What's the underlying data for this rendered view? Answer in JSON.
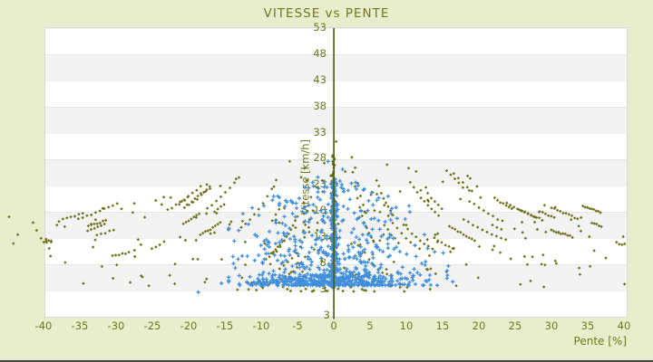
{
  "colors": {
    "background": "#e8edcb",
    "text": "#6f781e",
    "plot_border": "#d9d9d9",
    "axis_line": "#4d560d",
    "bottom_edge": "#454545"
  },
  "chart_data": {
    "type": "scatter",
    "title": "VITESSE vs PENTE",
    "xlabel": "Pente [%]",
    "ylabel": "Vitesse [km/h]",
    "xlim": [
      -39.8,
      40.4
    ],
    "ylim": [
      -2.2,
      53
    ],
    "x_ticks": [
      -40,
      -35,
      -30,
      -25,
      -20,
      -15,
      -10,
      -5,
      0,
      5,
      10,
      15,
      20,
      25,
      30,
      35,
      40
    ],
    "y_ticks": [
      53,
      48,
      43,
      38,
      33,
      28,
      23,
      18,
      13,
      8,
      3
    ],
    "y_axis_bottom_label": "3",
    "grid": "horizontal-bands",
    "band_colors": [
      "#ffffff",
      "#f3f3f3"
    ],
    "band_height_units": 5,
    "legend": "none",
    "axis_line_at_x": 0,
    "series": [
      {
        "name": "pente-vitesse-olive",
        "marker": "diamond",
        "marker_size": 1.7,
        "color": "#6d7117",
        "gen": {
          "rays": {
            "count": 52,
            "c_min": 35,
            "c_max": 680,
            "c_pow": 1.35,
            "v0_min": 8,
            "v0_max": 28,
            "n_min": 3,
            "n_max": 11,
            "dp_min": 0.3,
            "dp_max": 0.65,
            "v_jitter": 0.3,
            "env_a": 30,
            "env_b": 0.35,
            "v_min": 3.4,
            "p_start_max": 39,
            "p_hard_max": 40.2
          },
          "singles": {
            "count": 190,
            "p_min": 1.2,
            "p_range": 39,
            "p_pow": 1.5,
            "env_a": 30,
            "env_b": 0.35,
            "v_min": 3.4,
            "v_pow": 1.15
          },
          "column": {
            "count": 110,
            "p_sigma": 0.25,
            "p_clamp": 0.7,
            "v_min": 3.3,
            "v_range": 28.2,
            "v_pow": 1.05
          },
          "bottom": {
            "count": 30,
            "p_sigma": 6,
            "v_base": 2.6,
            "v_spread": 1.2
          }
        },
        "outlier_points": [
          [
            -44.8,
            16.9
          ],
          [
            -44.2,
            11.8
          ],
          [
            -41.5,
            15.8
          ],
          [
            -40.4,
            12.8
          ],
          [
            -41.0,
            14.3
          ],
          [
            -43.6,
            13.5
          ]
        ]
      },
      {
        "name": "pente-vitesse-blue",
        "marker": "cross",
        "marker_size": 2.1,
        "color": "#3f8edb",
        "gen": {
          "band": {
            "count": 330,
            "p_sigma": 6.2,
            "p_min": -14.5,
            "p_max": 17,
            "v_base": 3.8,
            "v_spread": 2.1,
            "v_pow": 2.2
          },
          "column": {
            "count": 150,
            "p_sigma": 0.22,
            "p_clamp": 0.6,
            "v_min": 3.5,
            "v_range": 21,
            "v_pow": 1.15
          },
          "core": {
            "count": 430,
            "p_sigma": 6.0,
            "p_min": -14.5,
            "p_max": 16.5,
            "v_base": 4.5,
            "env_a": 25,
            "env_b": 0.5,
            "v_pow": 1.7
          }
        },
        "extra_points": [
          [
            -18.7,
            2.5
          ],
          [
            -15.5,
            4.2
          ],
          [
            16.4,
            4.5
          ],
          [
            15.8,
            7.5
          ],
          [
            13.9,
            10.2
          ],
          [
            -13.2,
            8.8
          ],
          [
            12.5,
            13.5
          ],
          [
            -11.8,
            15.5
          ],
          [
            8.0,
            18.5
          ],
          [
            -7.5,
            19.5
          ],
          [
            5.2,
            21.5
          ],
          [
            -4.0,
            22.5
          ],
          [
            3.0,
            23.5
          ],
          [
            -2.2,
            24.5
          ],
          [
            1.2,
            26.0
          ],
          [
            -0.8,
            27.5
          ]
        ]
      }
    ]
  }
}
